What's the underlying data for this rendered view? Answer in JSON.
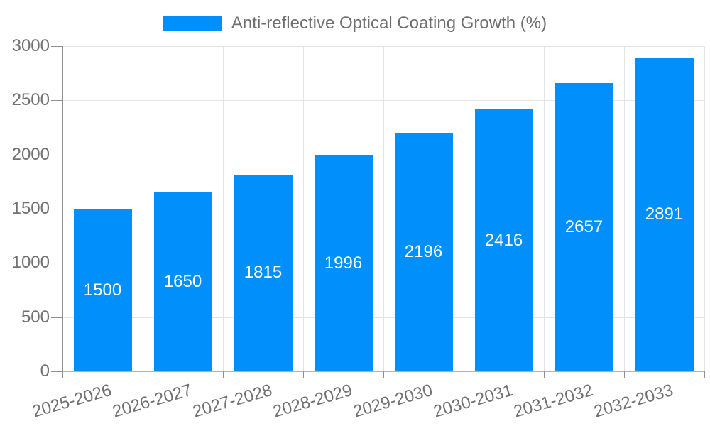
{
  "chart_data": {
    "type": "bar",
    "title": "",
    "legend": {
      "position": "top",
      "label": "Anti-reflective Optical Coating Growth (%)"
    },
    "categories": [
      "2025-2026",
      "2026-2027",
      "2027-2028",
      "2028-2029",
      "2029-2030",
      "2030-2031",
      "2031-2032",
      "2032-2033"
    ],
    "series": [
      {
        "name": "Anti-reflective Optical Coating Growth (%)",
        "values": [
          1500,
          1650,
          1815,
          1996,
          2196,
          2416,
          2657,
          2891
        ]
      }
    ],
    "xlabel": "",
    "ylabel": "",
    "ylim": [
      0,
      3000
    ],
    "y_ticks": [
      0,
      500,
      1000,
      1500,
      2000,
      2500,
      3000
    ],
    "grid": "both",
    "colors": {
      "bar": "#008FFB",
      "bar_value_text": "#ffffff",
      "axis_text": "#717171",
      "legend_text": "#6f6f6f",
      "gridline": "#e3e3e3",
      "axis_line": "#8f8f8f",
      "bottom_axis_line": "#b0b0b0",
      "background": "#ffffff"
    }
  }
}
